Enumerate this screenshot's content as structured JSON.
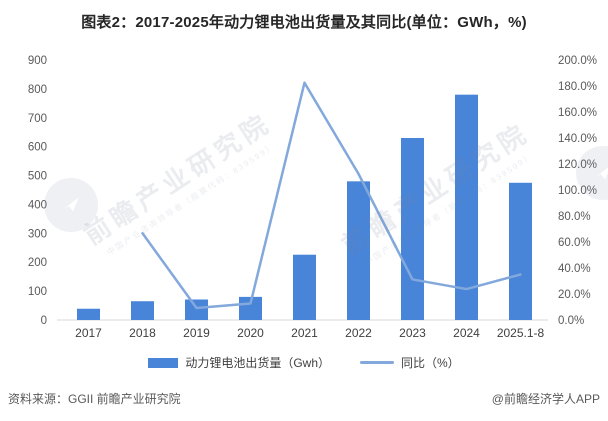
{
  "title": "图表2：2017-2025年动力锂电池出货量及其同比(单位：GWh，%)",
  "chart_data": {
    "type": "bar",
    "subtype": "bar-line-combo",
    "categories": [
      "2017",
      "2018",
      "2019",
      "2020",
      "2021",
      "2022",
      "2023",
      "2024",
      "2025.1-8"
    ],
    "series": [
      {
        "name": "动力锂电池出货量（Gwh）",
        "type": "bar",
        "axis": "left",
        "unit": "GWh",
        "values": [
          39,
          65,
          71,
          80,
          226,
          480,
          630,
          780,
          475
        ]
      },
      {
        "name": "同比（%）",
        "type": "line",
        "axis": "right",
        "unit": "%",
        "values": [
          null,
          66.7,
          9.2,
          12.7,
          182.5,
          112.4,
          31.2,
          23.8,
          35.0
        ]
      }
    ],
    "left_axis": {
      "min": 0,
      "max": 900,
      "step": 100,
      "tick_labels": [
        "0",
        "100",
        "200",
        "300",
        "400",
        "500",
        "600",
        "700",
        "800",
        "900"
      ]
    },
    "right_axis": {
      "min": 0,
      "max": 200,
      "step": 20,
      "tick_labels": [
        "0.0%",
        "20.0%",
        "40.0%",
        "60.0%",
        "80.0%",
        "100.0%",
        "120.0%",
        "140.0%",
        "160.0%",
        "180.0%",
        "200.0%"
      ]
    },
    "grid": false,
    "legend_position": "bottom",
    "title": "图表2：2017-2025年动力锂电池出货量及其同比(单位：GWh，%)"
  },
  "footer": {
    "source": "资料来源：GGII 前瞻产业研究院",
    "credit": "@前瞻经济学人APP"
  },
  "watermark": {
    "text": "前瞻产业研究院",
    "subtext": "中国产业咨询领导者（股票代码：839599）"
  },
  "colors": {
    "bar": "#4884d8",
    "line": "#82a8dc",
    "axis_text": "#595959",
    "category_text": "#404040",
    "title_text": "#262626",
    "axis_line": "#d9d9d9"
  }
}
